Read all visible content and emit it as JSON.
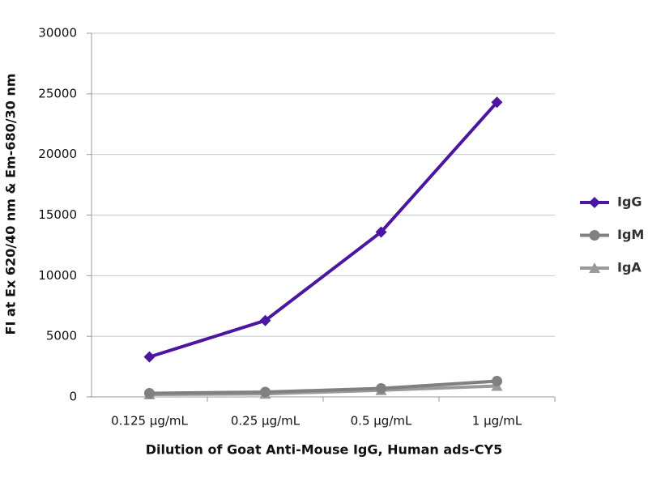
{
  "chart_data": {
    "type": "line",
    "x_label": "Dilution of Goat Anti-Mouse IgG, Human ads-CY5",
    "y_label": "FI at Ex 620/40 nm & Em-680/30 nm",
    "categories": [
      "0.125 µg/mL",
      "0.25 µg/mL",
      "0.5 µg/mL",
      "1 µg/mL"
    ],
    "series": [
      {
        "name": "IgG",
        "color": "#4b16a0",
        "marker": "diamond",
        "values": [
          3300,
          6300,
          13600,
          24300
        ]
      },
      {
        "name": "IgM",
        "color": "#808080",
        "marker": "circle",
        "values": [
          300,
          400,
          700,
          1300
        ]
      },
      {
        "name": "IgA",
        "color": "#9a9a9a",
        "marker": "triangle",
        "values": [
          200,
          250,
          550,
          900
        ]
      }
    ],
    "ylim": [
      0,
      30000
    ],
    "yticks": [
      0,
      5000,
      10000,
      15000,
      20000,
      25000,
      30000
    ],
    "grid": true,
    "legend": "right"
  }
}
